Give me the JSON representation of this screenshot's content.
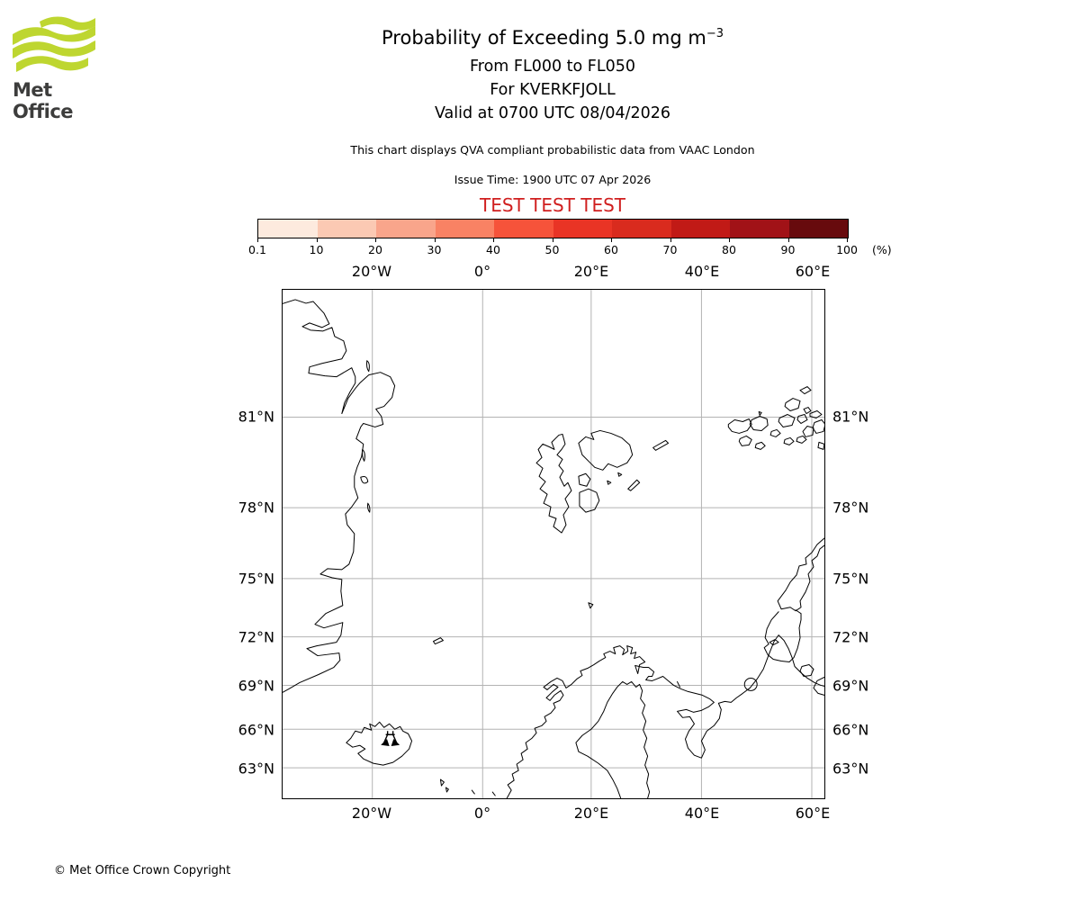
{
  "header": {
    "logo_text": "Met Office",
    "title_main": "Probability of Exceeding 5.0 mg m",
    "title_exp": "−3",
    "subtitle1": "From FL000 to FL050",
    "subtitle2": "For KVERKFJOLL",
    "subtitle3": "Valid at 0700 UTC 08/04/2026",
    "note": "This chart displays QVA compliant probabilistic data from VAAC London",
    "issue_time": "Issue Time: 1900 UTC 07 Apr 2026",
    "test_banner": "TEST TEST TEST"
  },
  "colorbar": {
    "unit": "(%)",
    "tick_labels": [
      "0.1",
      "10",
      "20",
      "30",
      "40",
      "50",
      "60",
      "70",
      "80",
      "90",
      "100"
    ],
    "colors": [
      "#fdeade",
      "#fbc9b3",
      "#f9a58b",
      "#f98264",
      "#f6533a",
      "#e93425",
      "#d92b1e",
      "#c11a16",
      "#a11217",
      "#670a0d"
    ]
  },
  "map": {
    "lon_labels": [
      "20°W",
      "0°",
      "20°E",
      "40°E",
      "60°E"
    ],
    "lat_labels": [
      "81°N",
      "78°N",
      "75°N",
      "72°N",
      "69°N",
      "66°N",
      "63°N"
    ]
  },
  "footer": {
    "copyright": "© Met Office Crown Copyright"
  },
  "colors": {
    "logo_green": "#bed630",
    "test_red": "#d01f1f",
    "gridline": "#b3b3b3"
  }
}
